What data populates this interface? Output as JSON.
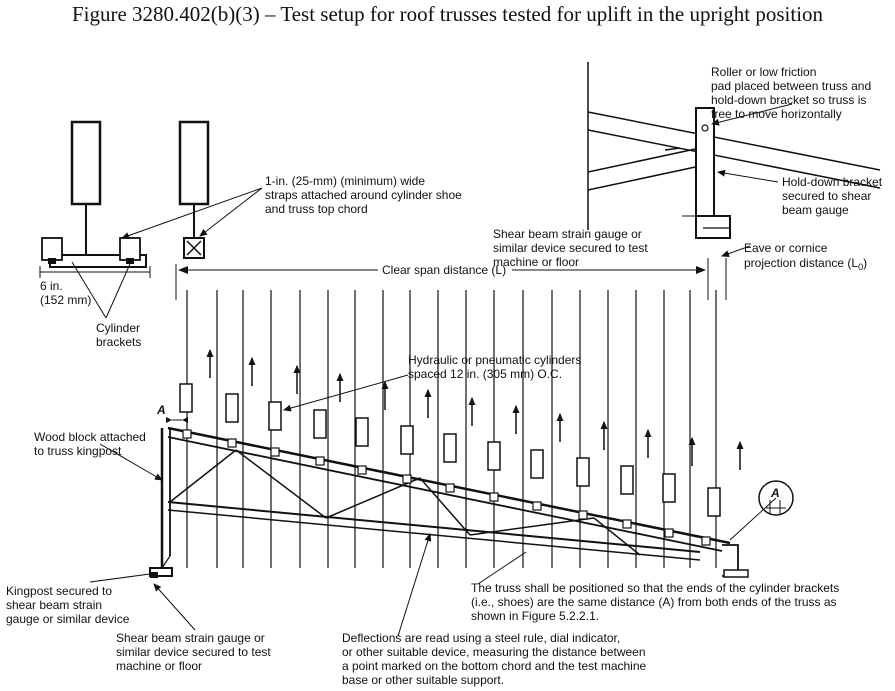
{
  "title": "Figure 3280.402(b)(3) – Test setup for roof trusses tested for uplift in the upright position",
  "labels": {
    "roller": [
      "Roller or low friction",
      "pad placed between truss and",
      "hold-down bracket so truss is",
      "free to move horizontally"
    ],
    "straps": [
      "1-in. (25-mm) (minimum) wide",
      "straps attached around cylinder shoe",
      "and truss top chord"
    ],
    "holddown": [
      "Hold-down bracket",
      "secured to shear",
      "beam gauge"
    ],
    "shear_top": [
      "Shear beam strain gauge or",
      "similar device secured to test",
      "machine or floor"
    ],
    "eave": [
      "Eave or cornice",
      "projection distance (L"
    ],
    "eave_sub": "0",
    "eave_close": ")",
    "six_in": [
      "6 in.",
      "(152 mm)"
    ],
    "cyl_brackets": [
      "Cylinder",
      "brackets"
    ],
    "clear_span": "Clear span distance (L)",
    "hydraulic": [
      "Hydraulic or pneumatic cylinders",
      "spaced 12 in. (305 mm) O.C."
    ],
    "dim_a": "A",
    "wood_block": [
      "Wood block attached",
      "to truss kingpost"
    ],
    "kingpost": [
      "Kingpost secured to",
      "shear beam strain",
      "gauge or similar device"
    ],
    "shear_bottom": [
      "Shear beam strain gauge or",
      "similar device secured to test",
      "machine or floor"
    ],
    "truss_pos": [
      "The truss shall be positioned so that the ends of the cylinder brackets",
      "(i.e., shoes) are the same distance (A) from both ends of the truss as",
      "shown in Figure 5.2.2.1."
    ],
    "deflections": [
      "Deflections are read using a steel rule, dial indicator,",
      "or other suitable device, measuring the distance between",
      "a point marked on the bottom chord and the test machine",
      "base or other suitable support."
    ]
  }
}
